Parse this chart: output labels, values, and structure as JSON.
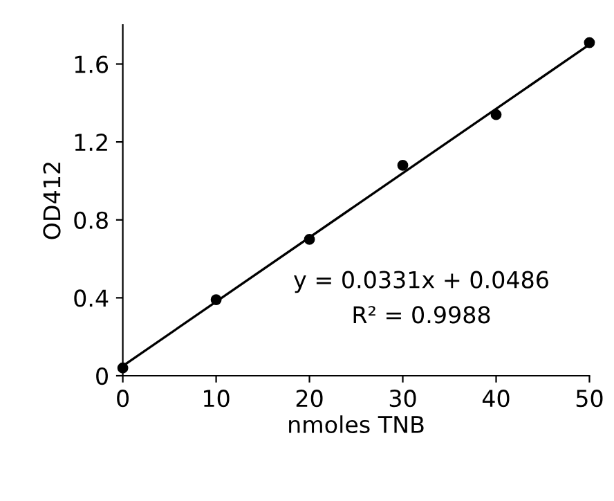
{
  "chart_data": {
    "type": "scatter",
    "xlabel": "nmoles TNB",
    "ylabel": "OD412",
    "x": [
      0,
      10,
      20,
      30,
      40,
      50
    ],
    "series": [
      {
        "color": "#000000",
        "values": [
          0.04,
          0.39,
          0.7,
          1.08,
          1.34,
          1.71
        ],
        "marker": "circle"
      },
      {
        "type": "line",
        "color": "#000000",
        "x": [
          0,
          50
        ],
        "values": [
          0.05,
          1.7
        ],
        "marker": "none",
        "line_style": "solid"
      }
    ],
    "annotations": [
      "y = 0.0331x + 0.0486",
      "R² = 0.9988"
    ],
    "xlim": [
      0,
      50
    ],
    "xticks": [
      0,
      10,
      20,
      30,
      40,
      50
    ],
    "ylim": [
      0,
      1.8
    ],
    "yticks": [
      0,
      0.4,
      0.8,
      1.2,
      1.6
    ],
    "grid": false,
    "legend": false
  }
}
